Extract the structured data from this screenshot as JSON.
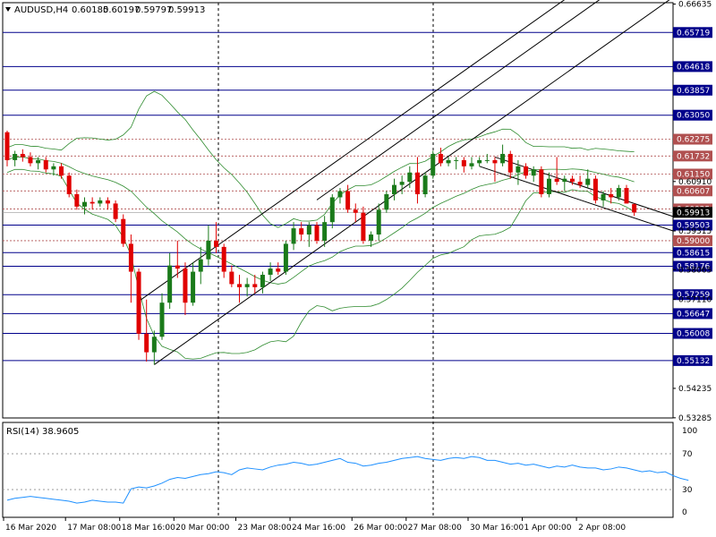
{
  "header": {
    "symbol_label": "AUDUSD,H4",
    "open": "0.60185",
    "high": "0.60197",
    "low": "0.59797",
    "close": "0.59913"
  },
  "colors": {
    "bull": "#1a7a1a",
    "bear": "#e00000",
    "level_line": "#00008b",
    "dotted_level": "#b05050",
    "bollinger": "#2e8b2e",
    "channel": "#000000",
    "rsi_line": "#1e90ff",
    "current_price_bg": "#000000"
  },
  "rsi_panel": {
    "label": "RSI(14) 38.9605",
    "ticks": [
      "100",
      "70",
      "30",
      "0"
    ]
  },
  "chart_data": [
    {
      "type": "candlestick",
      "title": "AUDUSD,H4",
      "ylim": [
        0.5328,
        0.6668
      ],
      "y_tick_labels": [
        "0.66635",
        "0.60910",
        "0.59315",
        "0.58065",
        "0.57110",
        "0.54235",
        "0.53285"
      ],
      "x_tick_labels": [
        "16 Mar 2020",
        "17 Mar 08:00",
        "18 Mar 16:00",
        "20 Mar 00:00",
        "23 Mar 08:00",
        "24 Mar 16:00",
        "26 Mar 00:00",
        "27 Mar 08:00",
        "30 Mar 16:00",
        "1 Apr 00:00",
        "2 Apr 08:00"
      ],
      "horizontal_levels": [
        {
          "value": 0.65719,
          "label": "0.65719",
          "style": "solid"
        },
        {
          "value": 0.64618,
          "label": "0.64618",
          "style": "solid"
        },
        {
          "value": 0.63857,
          "label": "0.63857",
          "style": "solid"
        },
        {
          "value": 0.6305,
          "label": "0.63050",
          "style": "solid"
        },
        {
          "value": 0.62275,
          "label": "0.62275",
          "style": "dotted"
        },
        {
          "value": 0.61732,
          "label": "0.61732",
          "style": "dotted"
        },
        {
          "value": 0.6115,
          "label": "0.61150",
          "style": "dotted"
        },
        {
          "value": 0.60607,
          "label": "0.60607",
          "style": "dotted"
        },
        {
          "value": 0.60025,
          "label": "0.60025",
          "style": "dotted"
        },
        {
          "value": 0.59913,
          "label": "0.59913",
          "style": "current"
        },
        {
          "value": 0.59503,
          "label": "0.59503",
          "style": "solid"
        },
        {
          "value": 0.59,
          "label": "0.59000",
          "style": "dotted"
        },
        {
          "value": 0.58615,
          "label": "0.58615",
          "style": "solid"
        },
        {
          "value": 0.58176,
          "label": "0.58176",
          "style": "solid"
        },
        {
          "value": 0.57259,
          "label": "0.57259",
          "style": "solid"
        },
        {
          "value": 0.56647,
          "label": "0.56647",
          "style": "solid"
        },
        {
          "value": 0.56008,
          "label": "0.56008",
          "style": "solid"
        },
        {
          "value": 0.55132,
          "label": "0.55132",
          "style": "solid"
        }
      ],
      "candles": [
        [
          0.625,
          0.6255,
          0.614,
          0.616
        ],
        [
          0.616,
          0.619,
          0.614,
          0.618
        ],
        [
          0.618,
          0.6195,
          0.6155,
          0.617
        ],
        [
          0.617,
          0.6185,
          0.614,
          0.615
        ],
        [
          0.615,
          0.617,
          0.613,
          0.616
        ],
        [
          0.616,
          0.617,
          0.612,
          0.613
        ],
        [
          0.613,
          0.615,
          0.611,
          0.614
        ],
        [
          0.614,
          0.615,
          0.61,
          0.611
        ],
        [
          0.611,
          0.612,
          0.604,
          0.605
        ],
        [
          0.605,
          0.6065,
          0.6,
          0.601
        ],
        [
          0.601,
          0.604,
          0.5985,
          0.6025
        ],
        [
          0.6025,
          0.604,
          0.6,
          0.602
        ],
        [
          0.602,
          0.604,
          0.601,
          0.603
        ],
        [
          0.603,
          0.604,
          0.6,
          0.602
        ],
        [
          0.602,
          0.603,
          0.596,
          0.597
        ],
        [
          0.597,
          0.5985,
          0.588,
          0.589
        ],
        [
          0.589,
          0.592,
          0.57,
          0.58
        ],
        [
          0.58,
          0.581,
          0.558,
          0.56
        ],
        [
          0.56,
          0.571,
          0.551,
          0.554
        ],
        [
          0.554,
          0.561,
          0.55,
          0.559
        ],
        [
          0.559,
          0.573,
          0.558,
          0.57
        ],
        [
          0.57,
          0.586,
          0.568,
          0.582
        ],
        [
          0.582,
          0.59,
          0.578,
          0.581
        ],
        [
          0.581,
          0.583,
          0.566,
          0.57
        ],
        [
          0.57,
          0.583,
          0.569,
          0.58
        ],
        [
          0.58,
          0.588,
          0.576,
          0.584
        ],
        [
          0.584,
          0.595,
          0.582,
          0.59
        ],
        [
          0.59,
          0.596,
          0.586,
          0.588
        ],
        [
          0.588,
          0.589,
          0.578,
          0.58
        ],
        [
          0.58,
          0.582,
          0.575,
          0.576
        ],
        [
          0.576,
          0.579,
          0.57,
          0.575
        ],
        [
          0.575,
          0.578,
          0.572,
          0.576
        ],
        [
          0.576,
          0.579,
          0.573,
          0.575
        ],
        [
          0.575,
          0.58,
          0.573,
          0.579
        ],
        [
          0.579,
          0.583,
          0.577,
          0.581
        ],
        [
          0.581,
          0.583,
          0.579,
          0.58
        ],
        [
          0.58,
          0.59,
          0.579,
          0.589
        ],
        [
          0.589,
          0.596,
          0.587,
          0.594
        ],
        [
          0.594,
          0.596,
          0.59,
          0.592
        ],
        [
          0.592,
          0.596,
          0.588,
          0.595
        ],
        [
          0.595,
          0.596,
          0.589,
          0.59
        ],
        [
          0.59,
          0.598,
          0.588,
          0.596
        ],
        [
          0.596,
          0.605,
          0.594,
          0.604
        ],
        [
          0.604,
          0.607,
          0.602,
          0.606
        ],
        [
          0.606,
          0.608,
          0.599,
          0.6
        ],
        [
          0.6,
          0.602,
          0.596,
          0.599
        ],
        [
          0.599,
          0.601,
          0.589,
          0.59
        ],
        [
          0.59,
          0.593,
          0.588,
          0.592
        ],
        [
          0.592,
          0.602,
          0.59,
          0.6
        ],
        [
          0.6,
          0.606,
          0.599,
          0.605
        ],
        [
          0.605,
          0.61,
          0.603,
          0.608
        ],
        [
          0.608,
          0.611,
          0.605,
          0.609
        ],
        [
          0.609,
          0.614,
          0.607,
          0.612
        ],
        [
          0.612,
          0.617,
          0.602,
          0.605
        ],
        [
          0.605,
          0.612,
          0.604,
          0.611
        ],
        [
          0.611,
          0.619,
          0.61,
          0.618
        ],
        [
          0.618,
          0.62,
          0.614,
          0.615
        ],
        [
          0.615,
          0.617,
          0.614,
          0.616
        ],
        [
          0.616,
          0.617,
          0.613,
          0.616
        ],
        [
          0.616,
          0.617,
          0.612,
          0.614
        ],
        [
          0.614,
          0.617,
          0.613,
          0.615
        ],
        [
          0.615,
          0.617,
          0.614,
          0.616
        ],
        [
          0.616,
          0.618,
          0.615,
          0.616
        ],
        [
          0.616,
          0.617,
          0.609,
          0.615
        ],
        [
          0.615,
          0.621,
          0.614,
          0.618
        ],
        [
          0.618,
          0.619,
          0.61,
          0.612
        ],
        [
          0.612,
          0.616,
          0.608,
          0.614
        ],
        [
          0.614,
          0.615,
          0.61,
          0.611
        ],
        [
          0.611,
          0.614,
          0.609,
          0.613
        ],
        [
          0.613,
          0.614,
          0.604,
          0.605
        ],
        [
          0.605,
          0.612,
          0.604,
          0.61
        ],
        [
          0.61,
          0.617,
          0.608,
          0.609
        ],
        [
          0.609,
          0.611,
          0.606,
          0.61
        ],
        [
          0.61,
          0.611,
          0.608,
          0.609
        ],
        [
          0.609,
          0.611,
          0.607,
          0.608
        ],
        [
          0.608,
          0.613,
          0.607,
          0.61
        ],
        [
          0.61,
          0.611,
          0.602,
          0.603
        ],
        [
          0.603,
          0.606,
          0.601,
          0.605
        ],
        [
          0.605,
          0.607,
          0.602,
          0.604
        ],
        [
          0.604,
          0.608,
          0.603,
          0.607
        ],
        [
          0.607,
          0.608,
          0.602,
          0.602
        ],
        [
          0.6018,
          0.602,
          0.598,
          0.5991
        ]
      ]
    },
    {
      "type": "line",
      "title": "RSI(14) 38.9605",
      "ylim": [
        0,
        100
      ],
      "y_tick_labels": [
        "100",
        "70",
        "30",
        "0"
      ],
      "series": [
        {
          "name": "RSI(14)",
          "values": [
            18,
            20,
            21,
            22,
            21,
            20,
            19,
            18,
            17,
            15,
            16,
            18,
            17,
            16,
            16,
            15,
            30,
            32,
            31,
            33,
            36,
            40,
            42,
            41,
            43,
            45,
            46,
            48,
            47,
            45,
            50,
            52,
            51,
            50,
            53,
            55,
            56,
            58,
            57,
            55,
            56,
            58,
            60,
            62,
            58,
            57,
            54,
            55,
            57,
            58,
            60,
            62,
            63,
            64,
            62,
            61,
            60,
            62,
            63,
            62,
            64,
            63,
            60,
            60,
            58,
            56,
            57,
            55,
            56,
            54,
            52,
            54,
            53,
            55,
            53,
            52,
            52,
            50,
            51,
            53,
            52,
            50,
            48,
            49,
            47,
            48,
            44,
            41,
            39
          ]
        }
      ]
    }
  ]
}
